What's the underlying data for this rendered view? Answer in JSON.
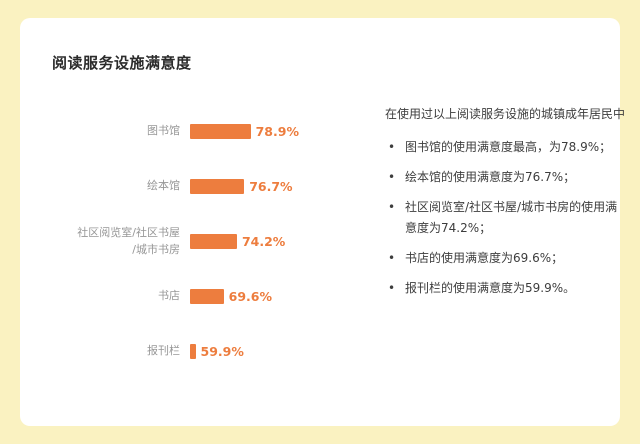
{
  "title": "阅读服务设施满意度",
  "chart_data": {
    "type": "bar",
    "orientation": "horizontal",
    "title": "阅读服务设施满意度",
    "categories": [
      "图书馆",
      "绘本馆",
      "社区阅览室/社区书屋\n/城市书房",
      "书店",
      "报刊栏"
    ],
    "values": [
      78.9,
      76.7,
      74.2,
      69.6,
      59.9
    ],
    "value_labels": [
      "78.9%",
      "76.7%",
      "74.2%",
      "69.6%",
      "59.9%"
    ],
    "legend": "none",
    "grid": "off",
    "axis_visible": false
  },
  "summary": {
    "intro": "在使用过以上阅读服务设施的城镇成年居民中",
    "bullets": [
      "图书馆的使用满意度最高，为78.9%；",
      "绘本馆的使用满意度为76.7%；",
      "社区阅览室/社区书屋/城市书房的使用满意度为74.2%；",
      "书店的使用满意度为69.6%；",
      "报刊栏的使用满意度为59.9%。"
    ]
  },
  "colors": {
    "background": "#FAF2C1",
    "card": "#FFFFFF",
    "bar": "#ED7D3E",
    "value_text": "#ED7D3E",
    "category_text": "#979797",
    "title_text": "#2B2B2B",
    "body_text": "#3D3D3D"
  }
}
